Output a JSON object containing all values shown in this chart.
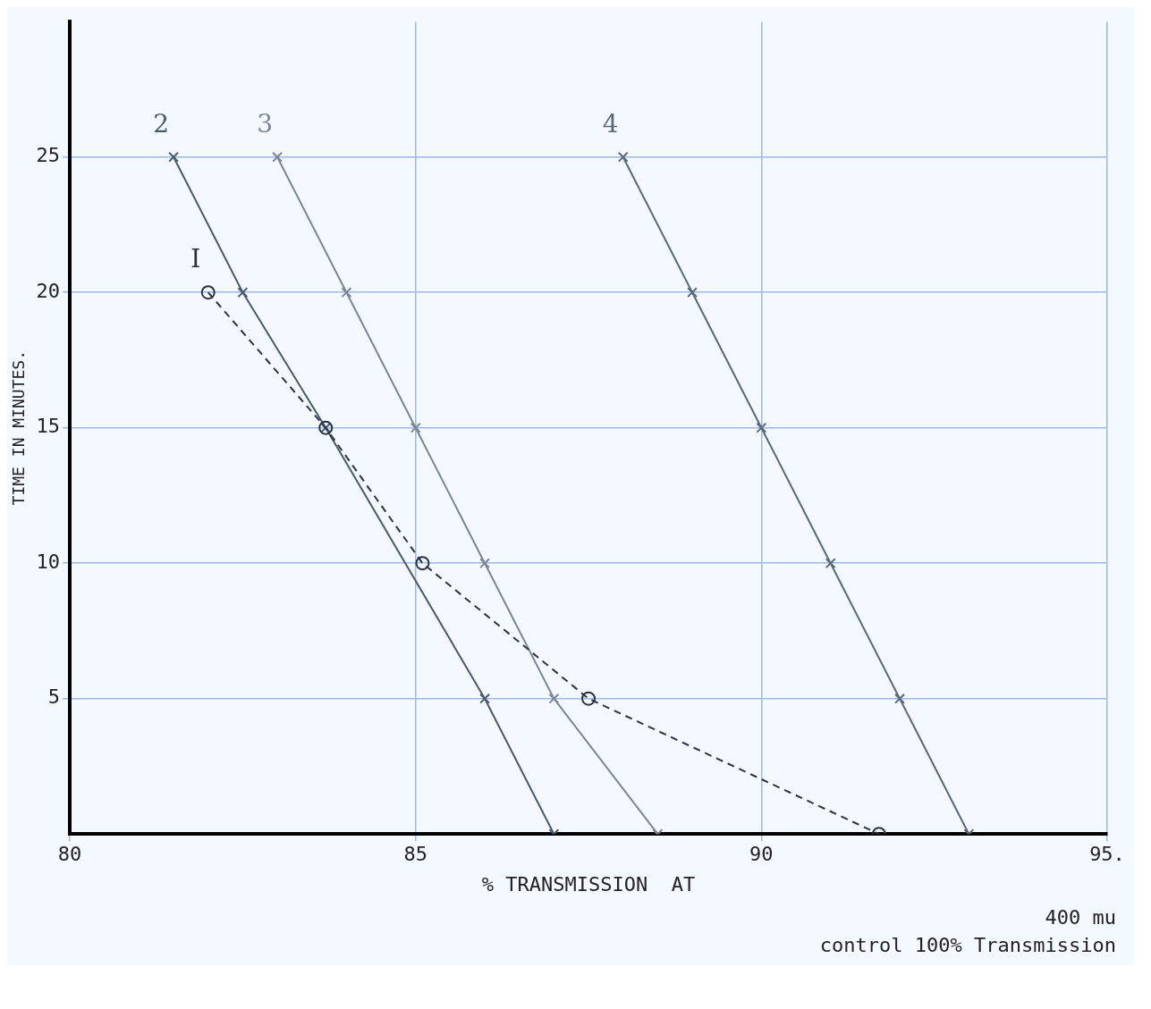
{
  "chart_data": {
    "type": "line",
    "xlabel": "% TRANSMISSION  AT",
    "ylabel": "TIME IN MINUTES.",
    "annotations": [
      "400 mu",
      "control  100% Transmission"
    ],
    "xlim": [
      80,
      95
    ],
    "xticks": [
      80,
      85,
      90,
      {
        "value": 95,
        "label": "95."
      }
    ],
    "ylim": [
      0,
      30
    ],
    "yticks": [
      5,
      10,
      15,
      20,
      25
    ],
    "grid": true,
    "legend": false,
    "series": [
      {
        "name": "I",
        "color": "#2a3340",
        "marker": "circle",
        "line_style": "dashed",
        "x": [
          82.0,
          83.7,
          85.1,
          87.5,
          91.7
        ],
        "values": [
          20,
          15,
          10,
          5,
          0
        ]
      },
      {
        "name": "2",
        "color": "#4a5a6a",
        "marker": "cross",
        "line_style": "solid",
        "x": [
          81.5,
          82.5,
          83.7,
          86.0,
          87.0
        ],
        "values": [
          25,
          20,
          15,
          5,
          0
        ]
      },
      {
        "name": "3",
        "color": "#7a8696",
        "marker": "cross",
        "line_style": "solid",
        "x": [
          83.0,
          84.0,
          85.0,
          86.0,
          87.0,
          88.5
        ],
        "values": [
          25,
          20,
          15,
          10,
          5,
          0
        ]
      },
      {
        "name": "4",
        "color": "#5a6878",
        "marker": "cross",
        "line_style": "solid",
        "x": [
          88.0,
          89.0,
          90.0,
          91.0,
          92.0,
          93.0
        ],
        "values": [
          25,
          20,
          15,
          10,
          5,
          0
        ]
      }
    ]
  }
}
